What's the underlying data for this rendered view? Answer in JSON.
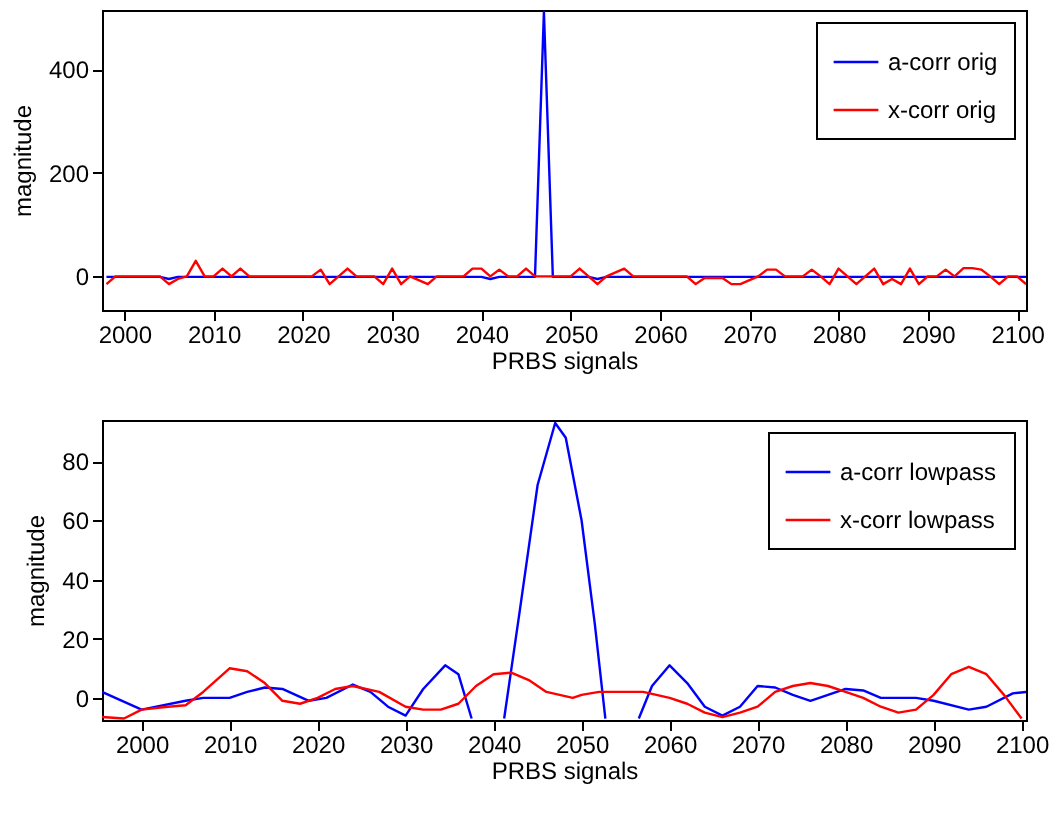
{
  "chart_data": [
    {
      "type": "line",
      "xlabel": "PRBS signals",
      "ylabel": "magnitude",
      "xlim": [
        1997.5,
        2101
      ],
      "xticks": [
        2000,
        2010,
        2020,
        2030,
        2040,
        2050,
        2060,
        2070,
        2080,
        2090,
        2100
      ],
      "ylim": [
        -65,
        515
      ],
      "yticks": [
        0,
        200,
        400
      ],
      "legend": "top right",
      "grid": false,
      "series": [
        {
          "name": "a-corr orig",
          "color": "#0000ff",
          "x": [
            1998,
            2004,
            2005,
            2006,
            2040,
            2041,
            2042,
            2046,
            2047,
            2048,
            2052,
            2053,
            2054,
            2101
          ],
          "values": [
            -1,
            -1,
            -5,
            -1,
            -1,
            -5,
            -1,
            -1,
            511,
            -1,
            -1,
            -5,
            -1,
            -1
          ]
        },
        {
          "name": "x-corr orig",
          "color": "#ff0000",
          "x": [
            1998,
            1999,
            2004,
            2005,
            2006,
            2007,
            2008,
            2009,
            2010,
            2011,
            2012,
            2013,
            2014,
            2021,
            2022,
            2023,
            2024,
            2025,
            2026,
            2028,
            2029,
            2030,
            2031,
            2032,
            2034,
            2035,
            2038,
            2039,
            2040,
            2041,
            2042,
            2043,
            2044,
            2045,
            2046,
            2050,
            2051,
            2052,
            2053,
            2054,
            2056,
            2057,
            2063,
            2064,
            2065,
            2067,
            2068,
            2069,
            2071,
            2072,
            2073,
            2074,
            2076,
            2077,
            2078,
            2079,
            2080,
            2081,
            2082,
            2083,
            2084,
            2085,
            2086,
            2087,
            2088,
            2089,
            2090,
            2091,
            2092,
            2093,
            2094,
            2095,
            2096,
            2097,
            2098,
            2099,
            2100,
            2101
          ],
          "values": [
            -15,
            0,
            0,
            -15,
            -5,
            0,
            30,
            0,
            0,
            15,
            0,
            15,
            0,
            0,
            13,
            -15,
            0,
            15,
            0,
            0,
            -15,
            15,
            -15,
            0,
            -15,
            0,
            0,
            15,
            15,
            0,
            13,
            0,
            0,
            15,
            0,
            0,
            15,
            0,
            -15,
            0,
            15,
            0,
            0,
            -15,
            -3,
            -3,
            -15,
            -15,
            0,
            13,
            13,
            0,
            0,
            13,
            0,
            -15,
            15,
            0,
            -15,
            0,
            15,
            -15,
            -5,
            -15,
            15,
            -15,
            0,
            0,
            13,
            0,
            16,
            16,
            13,
            0,
            -15,
            0,
            0,
            -15
          ]
        }
      ]
    },
    {
      "type": "line",
      "xlabel": "PRBS signals",
      "ylabel": "magnitude",
      "xlim": [
        1995.5,
        2100.5
      ],
      "xticks": [
        2000,
        2010,
        2020,
        2030,
        2040,
        2050,
        2060,
        2070,
        2080,
        2090,
        2100
      ],
      "ylim": [
        -7.5,
        94
      ],
      "yticks": [
        0,
        20,
        40,
        60,
        80
      ],
      "legend": "top right",
      "grid": false,
      "series": [
        {
          "name": "a-corr lowpass",
          "color": "#0000ff",
          "x": [
            1995.5,
            2000,
            2005,
            2007,
            2010,
            2012,
            2014,
            2016,
            2019,
            2021,
            2024,
            2026,
            2028,
            2030,
            2032,
            2034.5,
            2036,
            2037.5,
            2039,
            2041.2,
            2043,
            2045,
            2047,
            2048.2,
            2050,
            2051.5,
            2052.7,
            2054,
            2056.5,
            2058,
            2060,
            2062,
            2064,
            2066,
            2068,
            2070,
            2072,
            2074,
            2076,
            2078,
            2080,
            2082,
            2084,
            2086,
            2088,
            2090,
            2094,
            2096,
            2099,
            2100.5
          ],
          "values": [
            2,
            -4,
            -1,
            0,
            0,
            2,
            3.5,
            3,
            -1,
            0,
            4.5,
            2,
            -3,
            -6,
            3,
            11,
            8,
            -7,
            null,
            -7,
            30,
            72,
            93,
            88,
            60,
            25,
            -7,
            null,
            -7,
            4,
            11,
            5,
            -3,
            -6,
            -3,
            4,
            3.5,
            1,
            -1,
            1,
            3,
            2.5,
            0,
            0,
            0,
            -1,
            -4,
            -3,
            1.5,
            2
          ]
        },
        {
          "name": "x-corr lowpass",
          "color": "#ff0000",
          "x": [
            1995.5,
            1998,
            2000,
            2003,
            2005,
            2007,
            2010,
            2012,
            2014,
            2016,
            2018,
            2020,
            2022,
            2024,
            2027,
            2030,
            2032,
            2034,
            2036,
            2038,
            2040,
            2042,
            2044,
            2046,
            2049,
            2050,
            2052,
            2054,
            2057,
            2060,
            2062,
            2064,
            2066,
            2068,
            2070,
            2072,
            2074,
            2076,
            2078,
            2080,
            2082,
            2084,
            2086,
            2088,
            2090,
            2092,
            2094,
            2096,
            2098,
            2100
          ],
          "values": [
            -6.5,
            -7,
            -4,
            -3,
            -2.5,
            2,
            10,
            9,
            5,
            -1,
            -2,
            0,
            3,
            4,
            2,
            -3,
            -4,
            -4,
            -2,
            4,
            8,
            8.5,
            6,
            2,
            0,
            1,
            2,
            2,
            2,
            0,
            -2,
            -5,
            -6.5,
            -5,
            -3,
            2,
            4,
            5,
            4,
            2,
            0,
            -3,
            -5,
            -4,
            1,
            8,
            10.5,
            8,
            1,
            -7
          ]
        }
      ]
    }
  ]
}
